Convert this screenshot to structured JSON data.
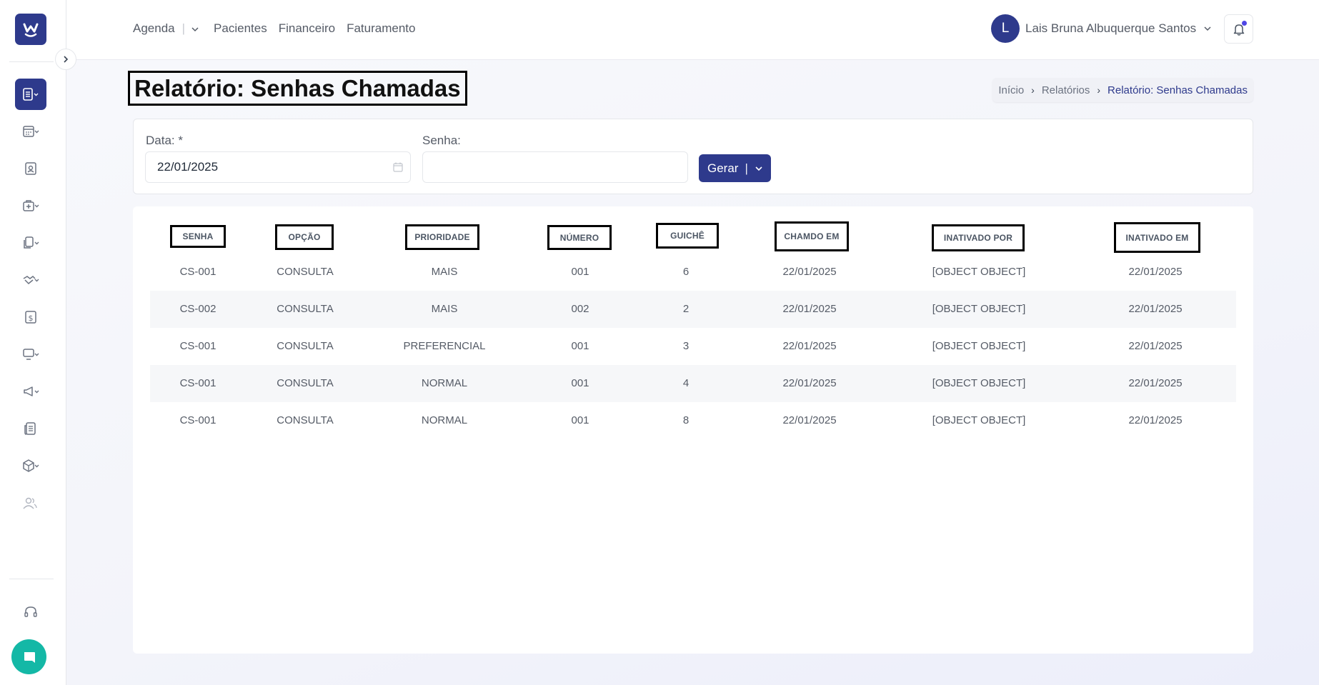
{
  "topnav": {
    "agenda": "Agenda",
    "pacientes": "Pacientes",
    "financeiro": "Financeiro",
    "faturamento": "Faturamento"
  },
  "user": {
    "initial": "L",
    "name": "Lais Bruna Albuquerque Santos"
  },
  "page": {
    "title": "Relatório: Senhas Chamadas"
  },
  "breadcrumb": {
    "home": "Início",
    "reports": "Relatórios",
    "current": "Relatório: Senhas Chamadas"
  },
  "filters": {
    "date_label": "Data: *",
    "date_value": "22/01/2025",
    "senha_label": "Senha:",
    "senha_value": "",
    "generate_label": "Gerar"
  },
  "table": {
    "headers": [
      "SENHA",
      "OPÇÃO",
      "PRIORIDADE",
      "NÚMERO",
      "GUICHÊ",
      "CHAMDO EM",
      "INATIVADO POR",
      "INATIVADO EM"
    ],
    "rows": [
      [
        "CS-001",
        "CONSULTA",
        "MAIS",
        "001",
        "6",
        "22/01/2025",
        "[object Object]",
        "22/01/2025"
      ],
      [
        "CS-002",
        "CONSULTA",
        "MAIS",
        "002",
        "2",
        "22/01/2025",
        "[object Object]",
        "22/01/2025"
      ],
      [
        "CS-001",
        "CONSULTA",
        "PREFERENCIAL",
        "001",
        "3",
        "22/01/2025",
        "[object Object]",
        "22/01/2025"
      ],
      [
        "CS-001",
        "CONSULTA",
        "NORMAL",
        "001",
        "4",
        "22/01/2025",
        "[object Object]",
        "22/01/2025"
      ],
      [
        "CS-001",
        "CONSULTA",
        "NORMAL",
        "001",
        "8",
        "22/01/2025",
        "[object Object]",
        "22/01/2025"
      ]
    ]
  },
  "colors": {
    "primary": "#2e3a8c",
    "chat": "#14b8a6"
  }
}
